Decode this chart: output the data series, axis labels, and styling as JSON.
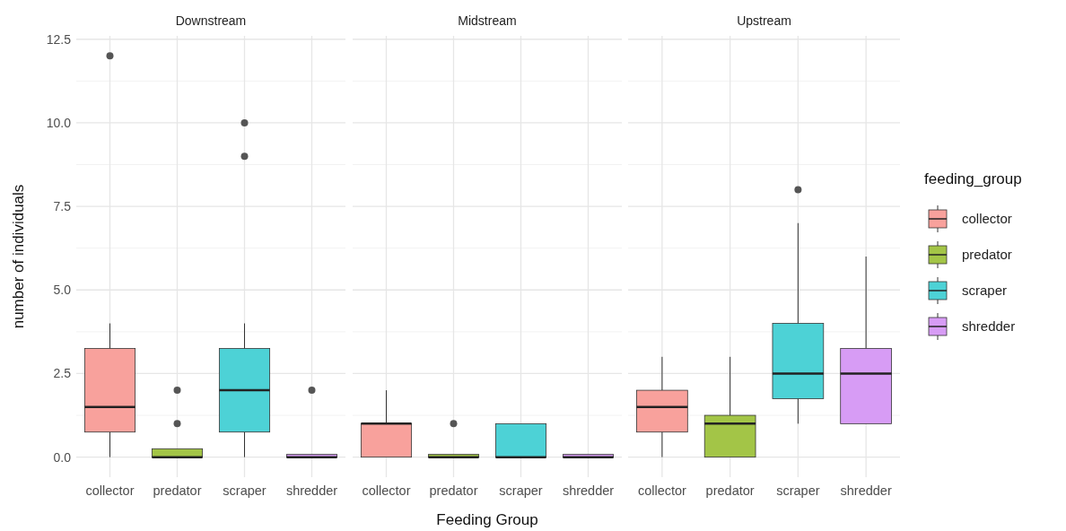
{
  "chart_data": [
    {
      "type": "box",
      "title": "Downstream",
      "ylabel": "number of individuals",
      "categories": [
        "collector",
        "predator",
        "scraper",
        "shredder"
      ],
      "colors": [
        "#f8a19c",
        "#a3c547",
        "#4dd2d6",
        "#d79cf5"
      ],
      "ylim": [
        -0.6,
        12.6
      ],
      "yticks": [
        {
          "value": 0,
          "label": "0.0"
        },
        {
          "value": 2.5,
          "label": "2.5"
        },
        {
          "value": 5,
          "label": "5.0"
        },
        {
          "value": 7.5,
          "label": "7.5"
        },
        {
          "value": 10,
          "label": "10.0"
        },
        {
          "value": 12.5,
          "label": "12.5"
        }
      ],
      "grid": true,
      "boxes": [
        {
          "low": 0,
          "q1": 0.75,
          "median": 1.5,
          "q3": 3.25,
          "high": 4,
          "outliers": [
            12
          ]
        },
        {
          "low": 0,
          "q1": 0,
          "median": 0,
          "q3": 0.25,
          "high": 0.25,
          "outliers": [
            1,
            2
          ]
        },
        {
          "low": 0,
          "q1": 0.75,
          "median": 2,
          "q3": 3.25,
          "high": 4,
          "outliers": [
            9,
            10
          ]
        },
        {
          "low": 0,
          "q1": 0,
          "median": 0,
          "q3": 0,
          "high": 0,
          "outliers": [
            2
          ]
        }
      ]
    },
    {
      "type": "box",
      "title": "Midstream",
      "xlabel": "Feeding Group",
      "categories": [
        "collector",
        "predator",
        "scraper",
        "shredder"
      ],
      "colors": [
        "#f8a19c",
        "#a3c547",
        "#4dd2d6",
        "#d79cf5"
      ],
      "ylim": [
        -0.6,
        12.6
      ],
      "yticks": [
        0,
        2.5,
        5,
        7.5,
        10,
        12.5
      ],
      "grid": true,
      "tick_labels": "x",
      "boxes": [
        {
          "low": 0,
          "q1": 0,
          "median": 1,
          "q3": 1,
          "high": 2
        },
        {
          "low": 0,
          "q1": 0,
          "median": 0,
          "q3": 0,
          "high": 0,
          "outliers": [
            1
          ]
        },
        {
          "low": 0,
          "q1": 0,
          "median": 0,
          "q3": 1,
          "high": 1
        },
        {
          "low": 0,
          "q1": 0,
          "median": 0,
          "q3": 0,
          "high": 0
        }
      ]
    },
    {
      "type": "box",
      "title": "Upstream",
      "legend_title": "feeding_group",
      "legend": "right",
      "categories": [
        "collector",
        "predator",
        "scraper",
        "shredder"
      ],
      "ylim": [
        -0.6,
        12.6
      ],
      "yticks": [
        0,
        2.5,
        5,
        7.5,
        10,
        12.5
      ],
      "grid": true,
      "tick_labels": "x",
      "series": [
        {
          "name": "collector",
          "color": "#f8a19c",
          "boxes": [
            {
              "low": 0,
              "q1": 0.75,
              "median": 1.5,
              "q3": 2,
              "high": 3
            },
            null,
            null,
            null
          ]
        },
        {
          "name": "predator",
          "color": "#a3c547",
          "boxes": [
            null,
            {
              "low": 0,
              "q1": 0,
              "median": 1,
              "q3": 1.25,
              "high": 3
            },
            null,
            null
          ]
        },
        {
          "name": "scraper",
          "color": "#4dd2d6",
          "boxes": [
            null,
            null,
            {
              "low": 1,
              "q1": 1.75,
              "median": 2.5,
              "q3": 4,
              "high": 7,
              "outliers": [
                8
              ]
            },
            null
          ]
        },
        {
          "name": "shredder",
          "color": "#d79cf5",
          "boxes": [
            null,
            null,
            null,
            {
              "low": 1,
              "q1": 1,
              "median": 2.5,
              "q3": 3.25,
              "high": 6
            }
          ]
        }
      ]
    }
  ]
}
